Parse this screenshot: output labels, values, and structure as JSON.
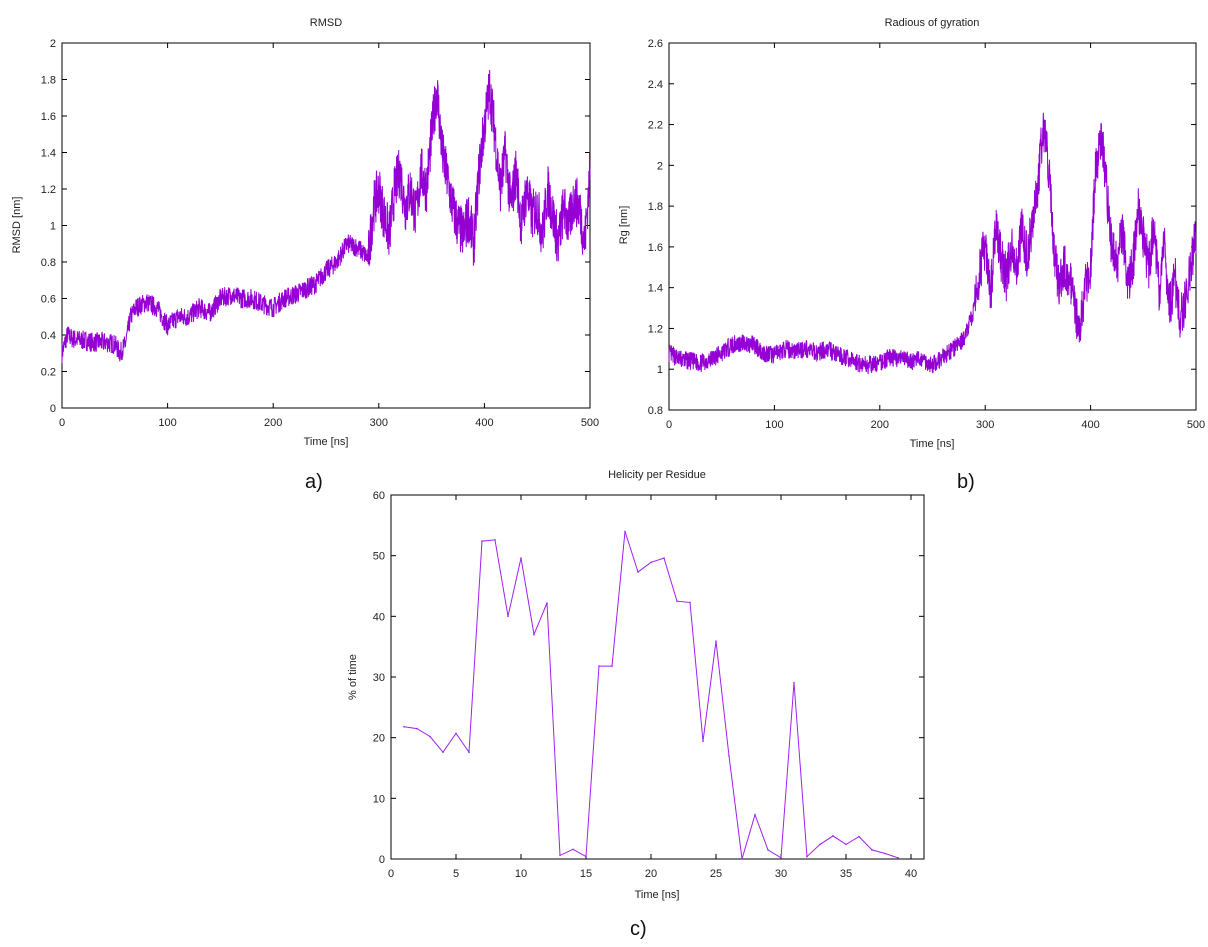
{
  "panels": {
    "a": {
      "label": "a)"
    },
    "b": {
      "label": "b)"
    },
    "c": {
      "label": "c)"
    }
  },
  "chart_data": [
    {
      "id": "a",
      "type": "line",
      "title": "RMSD",
      "xlabel": "Time [ns]",
      "ylabel": "RMSD [nm]",
      "xlim": [
        0,
        500
      ],
      "ylim": [
        0,
        2
      ],
      "xticks": [
        "0",
        "100",
        "200",
        "300",
        "400",
        "500"
      ],
      "yticks": [
        "0",
        "0.2",
        "0.4",
        "0.6",
        "0.8",
        "1",
        "1.2",
        "1.4",
        "1.6",
        "1.8",
        "2"
      ],
      "color": "#9400d3",
      "grid": false,
      "series": [
        {
          "x": [
            0,
            5,
            10,
            20,
            30,
            40,
            50,
            55,
            60,
            65,
            70,
            80,
            90,
            100,
            110,
            120,
            130,
            140,
            150,
            160,
            170,
            180,
            190,
            200,
            210,
            220,
            230,
            240,
            250,
            260,
            270,
            280,
            290,
            295,
            300,
            305,
            310,
            315,
            320,
            325,
            330,
            335,
            340,
            345,
            350,
            355,
            360,
            365,
            370,
            375,
            380,
            385,
            390,
            395,
            400,
            405,
            410,
            415,
            420,
            425,
            430,
            435,
            440,
            445,
            450,
            455,
            460,
            465,
            470,
            475,
            480,
            485,
            490,
            495,
            500
          ],
          "y": [
            0.3,
            0.4,
            0.38,
            0.37,
            0.36,
            0.36,
            0.35,
            0.3,
            0.35,
            0.5,
            0.55,
            0.58,
            0.55,
            0.45,
            0.5,
            0.5,
            0.55,
            0.52,
            0.6,
            0.62,
            0.6,
            0.6,
            0.57,
            0.55,
            0.6,
            0.62,
            0.65,
            0.68,
            0.75,
            0.8,
            0.9,
            0.88,
            0.82,
            1.1,
            1.2,
            1.05,
            0.95,
            1.2,
            1.3,
            1.1,
            1.2,
            1.05,
            1.3,
            1.2,
            1.5,
            1.75,
            1.4,
            1.25,
            1.1,
            1.0,
            0.95,
            1.05,
            0.9,
            1.3,
            1.55,
            1.75,
            1.5,
            1.2,
            1.4,
            1.1,
            1.3,
            1.0,
            1.2,
            1.05,
            1.1,
            0.95,
            1.2,
            1.05,
            0.9,
            1.1,
            1.0,
            1.15,
            1.1,
            0.9,
            1.3
          ]
        }
      ]
    },
    {
      "id": "b",
      "type": "line",
      "title": "Radious of gyration",
      "xlabel": "Time [ns]",
      "ylabel": "Rg [nm]",
      "xlim": [
        0,
        500
      ],
      "ylim": [
        0.8,
        2.6
      ],
      "xticks": [
        "0",
        "100",
        "200",
        "300",
        "400",
        "500"
      ],
      "yticks": [
        "0.8",
        "1",
        "1.2",
        "1.4",
        "1.6",
        "1.8",
        "2",
        "2.2",
        "2.4",
        "2.6"
      ],
      "color": "#9400d3",
      "grid": false,
      "series": [
        {
          "x": [
            0,
            10,
            20,
            30,
            40,
            50,
            60,
            70,
            80,
            90,
            100,
            110,
            120,
            130,
            140,
            150,
            160,
            170,
            180,
            190,
            200,
            210,
            220,
            230,
            240,
            250,
            260,
            270,
            280,
            290,
            295,
            300,
            305,
            310,
            315,
            320,
            325,
            330,
            335,
            340,
            345,
            350,
            355,
            360,
            365,
            370,
            375,
            380,
            385,
            390,
            395,
            400,
            405,
            410,
            415,
            420,
            425,
            430,
            435,
            440,
            445,
            450,
            455,
            460,
            465,
            470,
            475,
            480,
            485,
            490,
            495,
            500
          ],
          "y": [
            1.08,
            1.05,
            1.04,
            1.03,
            1.05,
            1.08,
            1.12,
            1.13,
            1.12,
            1.08,
            1.07,
            1.1,
            1.09,
            1.1,
            1.08,
            1.1,
            1.07,
            1.05,
            1.03,
            1.02,
            1.03,
            1.06,
            1.05,
            1.04,
            1.05,
            1.02,
            1.06,
            1.1,
            1.15,
            1.3,
            1.5,
            1.6,
            1.35,
            1.7,
            1.55,
            1.45,
            1.6,
            1.5,
            1.7,
            1.55,
            1.75,
            1.9,
            2.2,
            2.0,
            1.6,
            1.4,
            1.5,
            1.45,
            1.3,
            1.2,
            1.4,
            1.5,
            2.0,
            2.15,
            1.9,
            1.6,
            1.5,
            1.7,
            1.4,
            1.5,
            1.8,
            1.65,
            1.5,
            1.7,
            1.4,
            1.6,
            1.3,
            1.45,
            1.25,
            1.35,
            1.5,
            1.65
          ]
        }
      ]
    },
    {
      "id": "c",
      "type": "line",
      "title": "Helicity per Residue",
      "xlabel": "Time [ns]",
      "ylabel": "% of time",
      "xlim": [
        0,
        41
      ],
      "ylim": [
        0,
        60
      ],
      "xticks": [
        "0",
        "5",
        "10",
        "15",
        "20",
        "25",
        "30",
        "35",
        "40"
      ],
      "yticks": [
        "0",
        "10",
        "20",
        "30",
        "40",
        "50",
        "60"
      ],
      "color": "#a020f0",
      "grid": false,
      "series": [
        {
          "x": [
            1,
            2,
            3,
            4,
            5,
            6,
            7,
            8,
            9,
            10,
            11,
            12,
            13,
            14,
            15,
            16,
            17,
            18,
            19,
            20,
            21,
            22,
            23,
            24,
            25,
            26,
            27,
            28,
            29,
            30,
            31,
            32,
            33,
            34,
            35,
            36,
            37,
            38,
            39
          ],
          "y": [
            21.8,
            21.5,
            20.2,
            17.6,
            20.7,
            17.6,
            52.4,
            52.6,
            40.0,
            49.6,
            37.0,
            42.2,
            0.6,
            1.6,
            0.4,
            31.8,
            31.8,
            54.0,
            47.3,
            48.9,
            49.6,
            42.5,
            42.3,
            19.4,
            35.9,
            17.0,
            0.0,
            7.3,
            1.5,
            0.2,
            29.1,
            0.4,
            2.4,
            3.8,
            2.4,
            3.7,
            1.5,
            0.9,
            0.2
          ]
        }
      ]
    }
  ]
}
